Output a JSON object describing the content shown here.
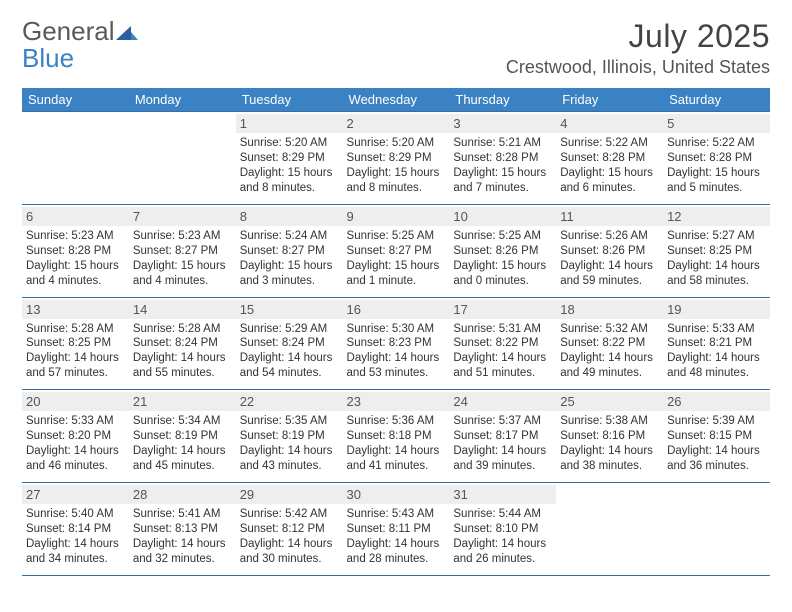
{
  "brand": {
    "part1": "General",
    "part2": "Blue"
  },
  "title": "July 2025",
  "location": "Crestwood, Illinois, United States",
  "colors": {
    "header_bg": "#3b82c4",
    "header_text": "#ffffff",
    "daynum_bg": "#eeeeee",
    "border": "#3b6ea0",
    "text": "#333333",
    "logo_gray": "#5a5a5a",
    "logo_blue": "#3b82c4"
  },
  "weekdays": [
    "Sunday",
    "Monday",
    "Tuesday",
    "Wednesday",
    "Thursday",
    "Friday",
    "Saturday"
  ],
  "weeks": [
    [
      {
        "day": "",
        "sunrise": "",
        "sunset": "",
        "daylight": ""
      },
      {
        "day": "",
        "sunrise": "",
        "sunset": "",
        "daylight": ""
      },
      {
        "day": "1",
        "sunrise": "Sunrise: 5:20 AM",
        "sunset": "Sunset: 8:29 PM",
        "daylight": "Daylight: 15 hours and 8 minutes."
      },
      {
        "day": "2",
        "sunrise": "Sunrise: 5:20 AM",
        "sunset": "Sunset: 8:29 PM",
        "daylight": "Daylight: 15 hours and 8 minutes."
      },
      {
        "day": "3",
        "sunrise": "Sunrise: 5:21 AM",
        "sunset": "Sunset: 8:28 PM",
        "daylight": "Daylight: 15 hours and 7 minutes."
      },
      {
        "day": "4",
        "sunrise": "Sunrise: 5:22 AM",
        "sunset": "Sunset: 8:28 PM",
        "daylight": "Daylight: 15 hours and 6 minutes."
      },
      {
        "day": "5",
        "sunrise": "Sunrise: 5:22 AM",
        "sunset": "Sunset: 8:28 PM",
        "daylight": "Daylight: 15 hours and 5 minutes."
      }
    ],
    [
      {
        "day": "6",
        "sunrise": "Sunrise: 5:23 AM",
        "sunset": "Sunset: 8:28 PM",
        "daylight": "Daylight: 15 hours and 4 minutes."
      },
      {
        "day": "7",
        "sunrise": "Sunrise: 5:23 AM",
        "sunset": "Sunset: 8:27 PM",
        "daylight": "Daylight: 15 hours and 4 minutes."
      },
      {
        "day": "8",
        "sunrise": "Sunrise: 5:24 AM",
        "sunset": "Sunset: 8:27 PM",
        "daylight": "Daylight: 15 hours and 3 minutes."
      },
      {
        "day": "9",
        "sunrise": "Sunrise: 5:25 AM",
        "sunset": "Sunset: 8:27 PM",
        "daylight": "Daylight: 15 hours and 1 minute."
      },
      {
        "day": "10",
        "sunrise": "Sunrise: 5:25 AM",
        "sunset": "Sunset: 8:26 PM",
        "daylight": "Daylight: 15 hours and 0 minutes."
      },
      {
        "day": "11",
        "sunrise": "Sunrise: 5:26 AM",
        "sunset": "Sunset: 8:26 PM",
        "daylight": "Daylight: 14 hours and 59 minutes."
      },
      {
        "day": "12",
        "sunrise": "Sunrise: 5:27 AM",
        "sunset": "Sunset: 8:25 PM",
        "daylight": "Daylight: 14 hours and 58 minutes."
      }
    ],
    [
      {
        "day": "13",
        "sunrise": "Sunrise: 5:28 AM",
        "sunset": "Sunset: 8:25 PM",
        "daylight": "Daylight: 14 hours and 57 minutes."
      },
      {
        "day": "14",
        "sunrise": "Sunrise: 5:28 AM",
        "sunset": "Sunset: 8:24 PM",
        "daylight": "Daylight: 14 hours and 55 minutes."
      },
      {
        "day": "15",
        "sunrise": "Sunrise: 5:29 AM",
        "sunset": "Sunset: 8:24 PM",
        "daylight": "Daylight: 14 hours and 54 minutes."
      },
      {
        "day": "16",
        "sunrise": "Sunrise: 5:30 AM",
        "sunset": "Sunset: 8:23 PM",
        "daylight": "Daylight: 14 hours and 53 minutes."
      },
      {
        "day": "17",
        "sunrise": "Sunrise: 5:31 AM",
        "sunset": "Sunset: 8:22 PM",
        "daylight": "Daylight: 14 hours and 51 minutes."
      },
      {
        "day": "18",
        "sunrise": "Sunrise: 5:32 AM",
        "sunset": "Sunset: 8:22 PM",
        "daylight": "Daylight: 14 hours and 49 minutes."
      },
      {
        "day": "19",
        "sunrise": "Sunrise: 5:33 AM",
        "sunset": "Sunset: 8:21 PM",
        "daylight": "Daylight: 14 hours and 48 minutes."
      }
    ],
    [
      {
        "day": "20",
        "sunrise": "Sunrise: 5:33 AM",
        "sunset": "Sunset: 8:20 PM",
        "daylight": "Daylight: 14 hours and 46 minutes."
      },
      {
        "day": "21",
        "sunrise": "Sunrise: 5:34 AM",
        "sunset": "Sunset: 8:19 PM",
        "daylight": "Daylight: 14 hours and 45 minutes."
      },
      {
        "day": "22",
        "sunrise": "Sunrise: 5:35 AM",
        "sunset": "Sunset: 8:19 PM",
        "daylight": "Daylight: 14 hours and 43 minutes."
      },
      {
        "day": "23",
        "sunrise": "Sunrise: 5:36 AM",
        "sunset": "Sunset: 8:18 PM",
        "daylight": "Daylight: 14 hours and 41 minutes."
      },
      {
        "day": "24",
        "sunrise": "Sunrise: 5:37 AM",
        "sunset": "Sunset: 8:17 PM",
        "daylight": "Daylight: 14 hours and 39 minutes."
      },
      {
        "day": "25",
        "sunrise": "Sunrise: 5:38 AM",
        "sunset": "Sunset: 8:16 PM",
        "daylight": "Daylight: 14 hours and 38 minutes."
      },
      {
        "day": "26",
        "sunrise": "Sunrise: 5:39 AM",
        "sunset": "Sunset: 8:15 PM",
        "daylight": "Daylight: 14 hours and 36 minutes."
      }
    ],
    [
      {
        "day": "27",
        "sunrise": "Sunrise: 5:40 AM",
        "sunset": "Sunset: 8:14 PM",
        "daylight": "Daylight: 14 hours and 34 minutes."
      },
      {
        "day": "28",
        "sunrise": "Sunrise: 5:41 AM",
        "sunset": "Sunset: 8:13 PM",
        "daylight": "Daylight: 14 hours and 32 minutes."
      },
      {
        "day": "29",
        "sunrise": "Sunrise: 5:42 AM",
        "sunset": "Sunset: 8:12 PM",
        "daylight": "Daylight: 14 hours and 30 minutes."
      },
      {
        "day": "30",
        "sunrise": "Sunrise: 5:43 AM",
        "sunset": "Sunset: 8:11 PM",
        "daylight": "Daylight: 14 hours and 28 minutes."
      },
      {
        "day": "31",
        "sunrise": "Sunrise: 5:44 AM",
        "sunset": "Sunset: 8:10 PM",
        "daylight": "Daylight: 14 hours and 26 minutes."
      },
      {
        "day": "",
        "sunrise": "",
        "sunset": "",
        "daylight": ""
      },
      {
        "day": "",
        "sunrise": "",
        "sunset": "",
        "daylight": ""
      }
    ]
  ]
}
